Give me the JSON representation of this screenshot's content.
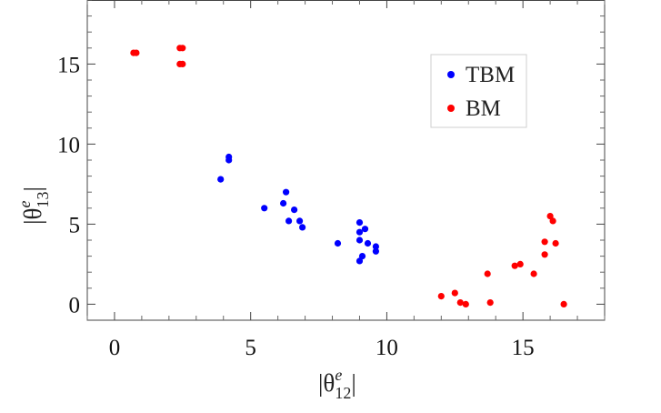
{
  "chart_data": {
    "type": "scatter",
    "title": "",
    "xlabel": {
      "prefix": "|θ",
      "sup": "e",
      "sub": "12",
      "suffix": "|"
    },
    "ylabel": {
      "prefix": "|θ",
      "sup": "e",
      "sub": "13",
      "suffix": "|"
    },
    "xlim": [
      -1,
      18
    ],
    "ylim": [
      -1,
      19
    ],
    "xticks": [
      0,
      5,
      10,
      15
    ],
    "yticks": [
      0,
      5,
      10,
      15
    ],
    "grid": false,
    "legend_position": "top-right",
    "series": [
      {
        "name": "TBM",
        "color": "#0000ff",
        "x": [
          4.2,
          4.2,
          3.9,
          5.5,
          6.2,
          6.3,
          6.4,
          6.6,
          6.8,
          6.9,
          8.2,
          9.0,
          9.2,
          9.0,
          9.0,
          9.3,
          9.6,
          9.6,
          9.1,
          9.0
        ],
        "y": [
          9.2,
          9.0,
          7.8,
          6.0,
          6.3,
          7.0,
          5.2,
          5.9,
          5.2,
          4.8,
          3.8,
          5.1,
          4.7,
          4.5,
          4.0,
          3.8,
          3.6,
          3.3,
          3.0,
          2.7
        ]
      },
      {
        "name": "BM",
        "color": "#ff0000",
        "x": [
          0.8,
          0.7,
          2.4,
          2.5,
          2.4,
          2.5,
          12.0,
          12.5,
          12.7,
          12.9,
          13.7,
          13.8,
          14.7,
          14.9,
          15.4,
          15.8,
          15.8,
          16.0,
          16.1,
          16.2,
          16.5
        ],
        "y": [
          15.7,
          15.7,
          16.0,
          16.0,
          15.0,
          15.0,
          0.5,
          0.7,
          0.1,
          0.0,
          1.9,
          0.1,
          2.4,
          2.5,
          1.9,
          3.9,
          3.1,
          5.5,
          5.2,
          3.8,
          0.0
        ]
      }
    ]
  }
}
